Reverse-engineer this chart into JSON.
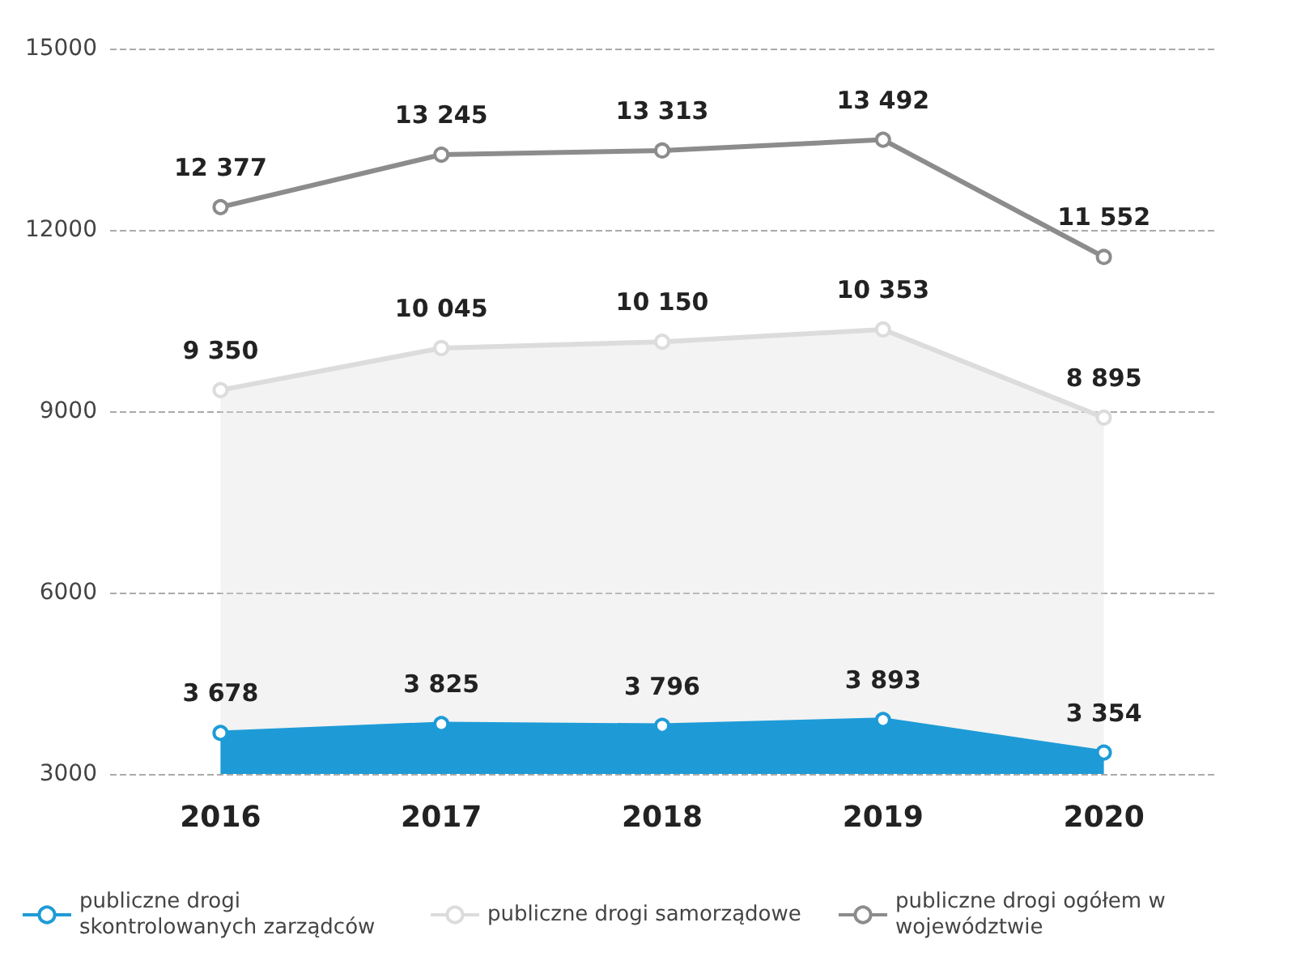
{
  "chart_data": {
    "type": "line",
    "categories": [
      "2016",
      "2017",
      "2018",
      "2019",
      "2020"
    ],
    "series": [
      {
        "name": "publiczne drogi skontrolowanych zarządców",
        "type": "area",
        "color": "#1e9bd7",
        "values": [
          3678,
          3825,
          3796,
          3893,
          3354
        ],
        "value_labels": [
          "3 678",
          "3 825",
          "3 796",
          "3 893",
          "3 354"
        ]
      },
      {
        "name": "publiczne drogi samorządowe",
        "type": "area",
        "color": "#dcdcdc",
        "values": [
          9350,
          10045,
          10150,
          10353,
          8895
        ],
        "value_labels": [
          "9 350",
          "10 045",
          "10 150",
          "10 353",
          "8 895"
        ]
      },
      {
        "name": "publiczne drogi ogółem w województwie",
        "color": "#8c8c8c",
        "values": [
          12377,
          13245,
          13313,
          13492,
          11552
        ],
        "value_labels": [
          "12 377",
          "13 245",
          "13 313",
          "13 492",
          "11 552"
        ]
      }
    ],
    "ylim": [
      3000,
      15000
    ],
    "yticks": [
      3000,
      6000,
      9000,
      12000,
      15000
    ],
    "grid": "y",
    "legend": "bottom",
    "marker": "circle",
    "line_style": "solid"
  }
}
